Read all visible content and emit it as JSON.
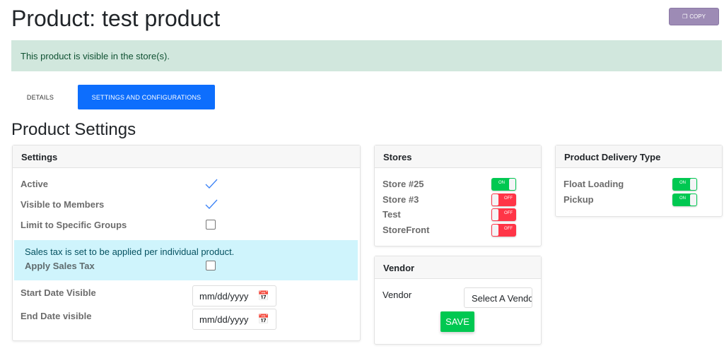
{
  "page": {
    "title": "Product: test product",
    "copy_label": "COPY",
    "alert": "This product is visible in the store(s).",
    "section_title": "Product Settings"
  },
  "tabs": [
    {
      "label": "DETAILS",
      "active": false
    },
    {
      "label": "SETTINGS AND CONFIGURATIONS",
      "active": true
    }
  ],
  "settings": {
    "header": "Settings",
    "active": "Active",
    "active_checked": true,
    "visible": "Visible to Members",
    "visible_checked": true,
    "limit": "Limit to Specific Groups",
    "limit_checked": false,
    "tax_info": "Sales tax is set to be applied per individual product.",
    "apply_tax": "Apply Sales Tax",
    "apply_tax_checked": false,
    "start_date": "Start Date Visible",
    "end_date": "End Date visible",
    "date_placeholder": "mm/dd/yyyy"
  },
  "stores": {
    "header": "Stores",
    "items": [
      {
        "name": "Store #25",
        "state": "ON"
      },
      {
        "name": "Store #3",
        "state": "OFF"
      },
      {
        "name": "Test",
        "state": "OFF"
      },
      {
        "name": "StoreFront",
        "state": "OFF"
      }
    ]
  },
  "vendor": {
    "header": "Vendor",
    "label": "Vendor",
    "select": "Select A Vendor",
    "save": "SAVE"
  },
  "delivery": {
    "header": "Product Delivery Type",
    "items": [
      {
        "name": "Float Loading",
        "state": "ON"
      },
      {
        "name": "Pickup",
        "state": "ON"
      }
    ]
  },
  "colors": {
    "primary": "#0d6efd",
    "on": "#00c851",
    "off": "#ff3547",
    "copy": "#9d8bb5"
  }
}
